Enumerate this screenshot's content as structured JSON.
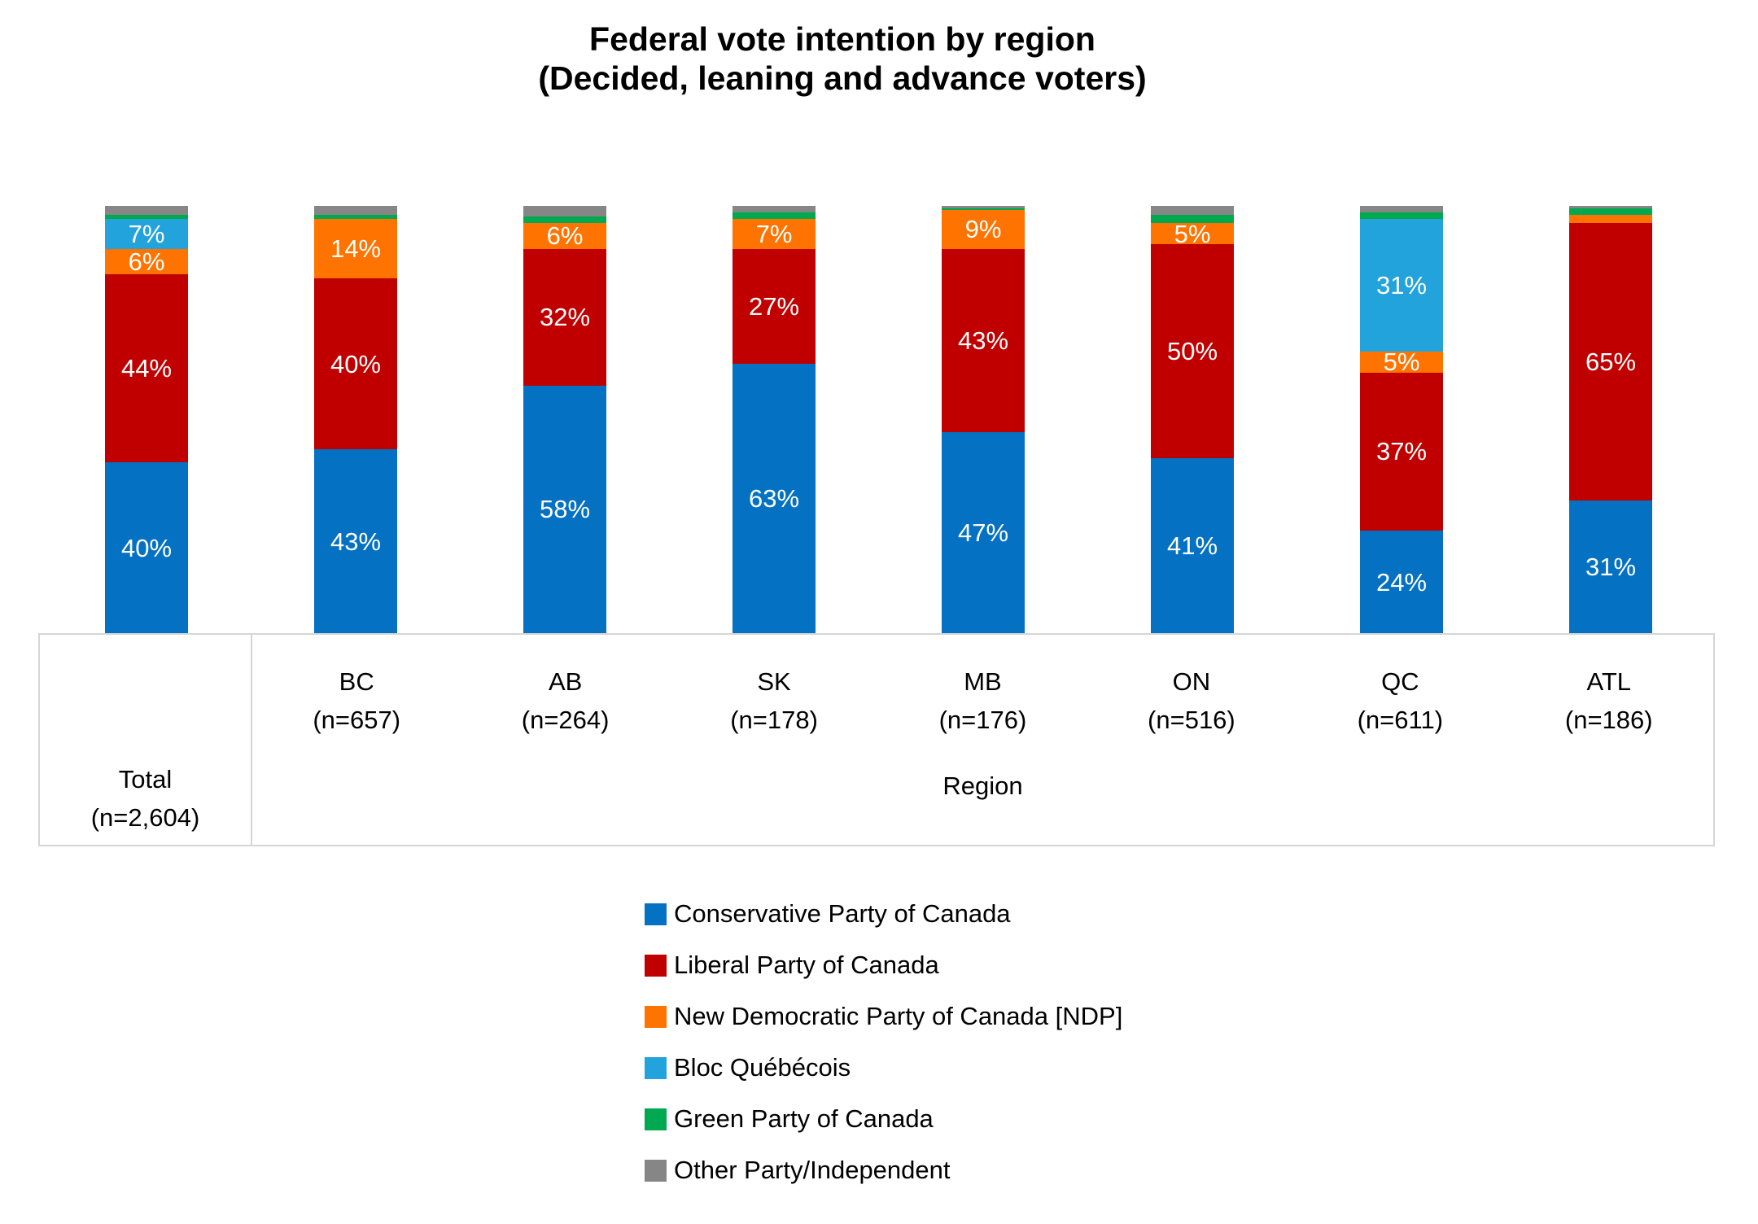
{
  "title": {
    "line1": "Federal vote intention by region",
    "line2": "(Decided, leaning and advance voters)"
  },
  "chart_data": {
    "type": "bar",
    "stacked": true,
    "orientation": "vertical",
    "unit": "percent",
    "ylim": [
      0,
      100
    ],
    "gridlines": false,
    "value_label_min": 5,
    "legend_position": "bottom",
    "categories": [
      {
        "label": "Total",
        "sublabel": "(n=2,604)"
      },
      {
        "label": "BC",
        "sublabel": "(n=657)"
      },
      {
        "label": "AB",
        "sublabel": "(n=264)"
      },
      {
        "label": "SK",
        "sublabel": "(n=178)"
      },
      {
        "label": "MB",
        "sublabel": "(n=176)"
      },
      {
        "label": "ON",
        "sublabel": "(n=516)"
      },
      {
        "label": "QC",
        "sublabel": "(n=611)"
      },
      {
        "label": "ATL",
        "sublabel": "(n=186)"
      }
    ],
    "series": [
      {
        "name": "Conservative Party of Canada",
        "color": "#0471C2",
        "values": [
          40,
          43,
          58,
          63,
          47,
          41,
          24,
          31
        ]
      },
      {
        "name": "Liberal Party of Canada",
        "color": "#C00000",
        "values": [
          44,
          40,
          32,
          27,
          43,
          50,
          37,
          65
        ]
      },
      {
        "name": "New Democratic Party of Canada [NDP]",
        "color": "#FF7300",
        "values": [
          6,
          14,
          6,
          7,
          9,
          5,
          5,
          2
        ]
      },
      {
        "name": "Bloc Québécois",
        "color": "#22A3DB",
        "values": [
          7,
          0,
          0,
          0,
          0,
          0,
          31,
          0
        ]
      },
      {
        "name": "Green Party of Canada",
        "color": "#00A850",
        "values": [
          1,
          1,
          1.5,
          1.5,
          0.5,
          2,
          1.5,
          1.5
        ]
      },
      {
        "name": "Other Party/Independent",
        "color": "#868686",
        "values": [
          2,
          2,
          2.5,
          1.5,
          0.5,
          2,
          1.5,
          0.5
        ]
      }
    ]
  },
  "x_axis": {
    "first_column": {
      "label": "Total",
      "sublabel": "(n=2,604)"
    },
    "group_label": "Region"
  }
}
